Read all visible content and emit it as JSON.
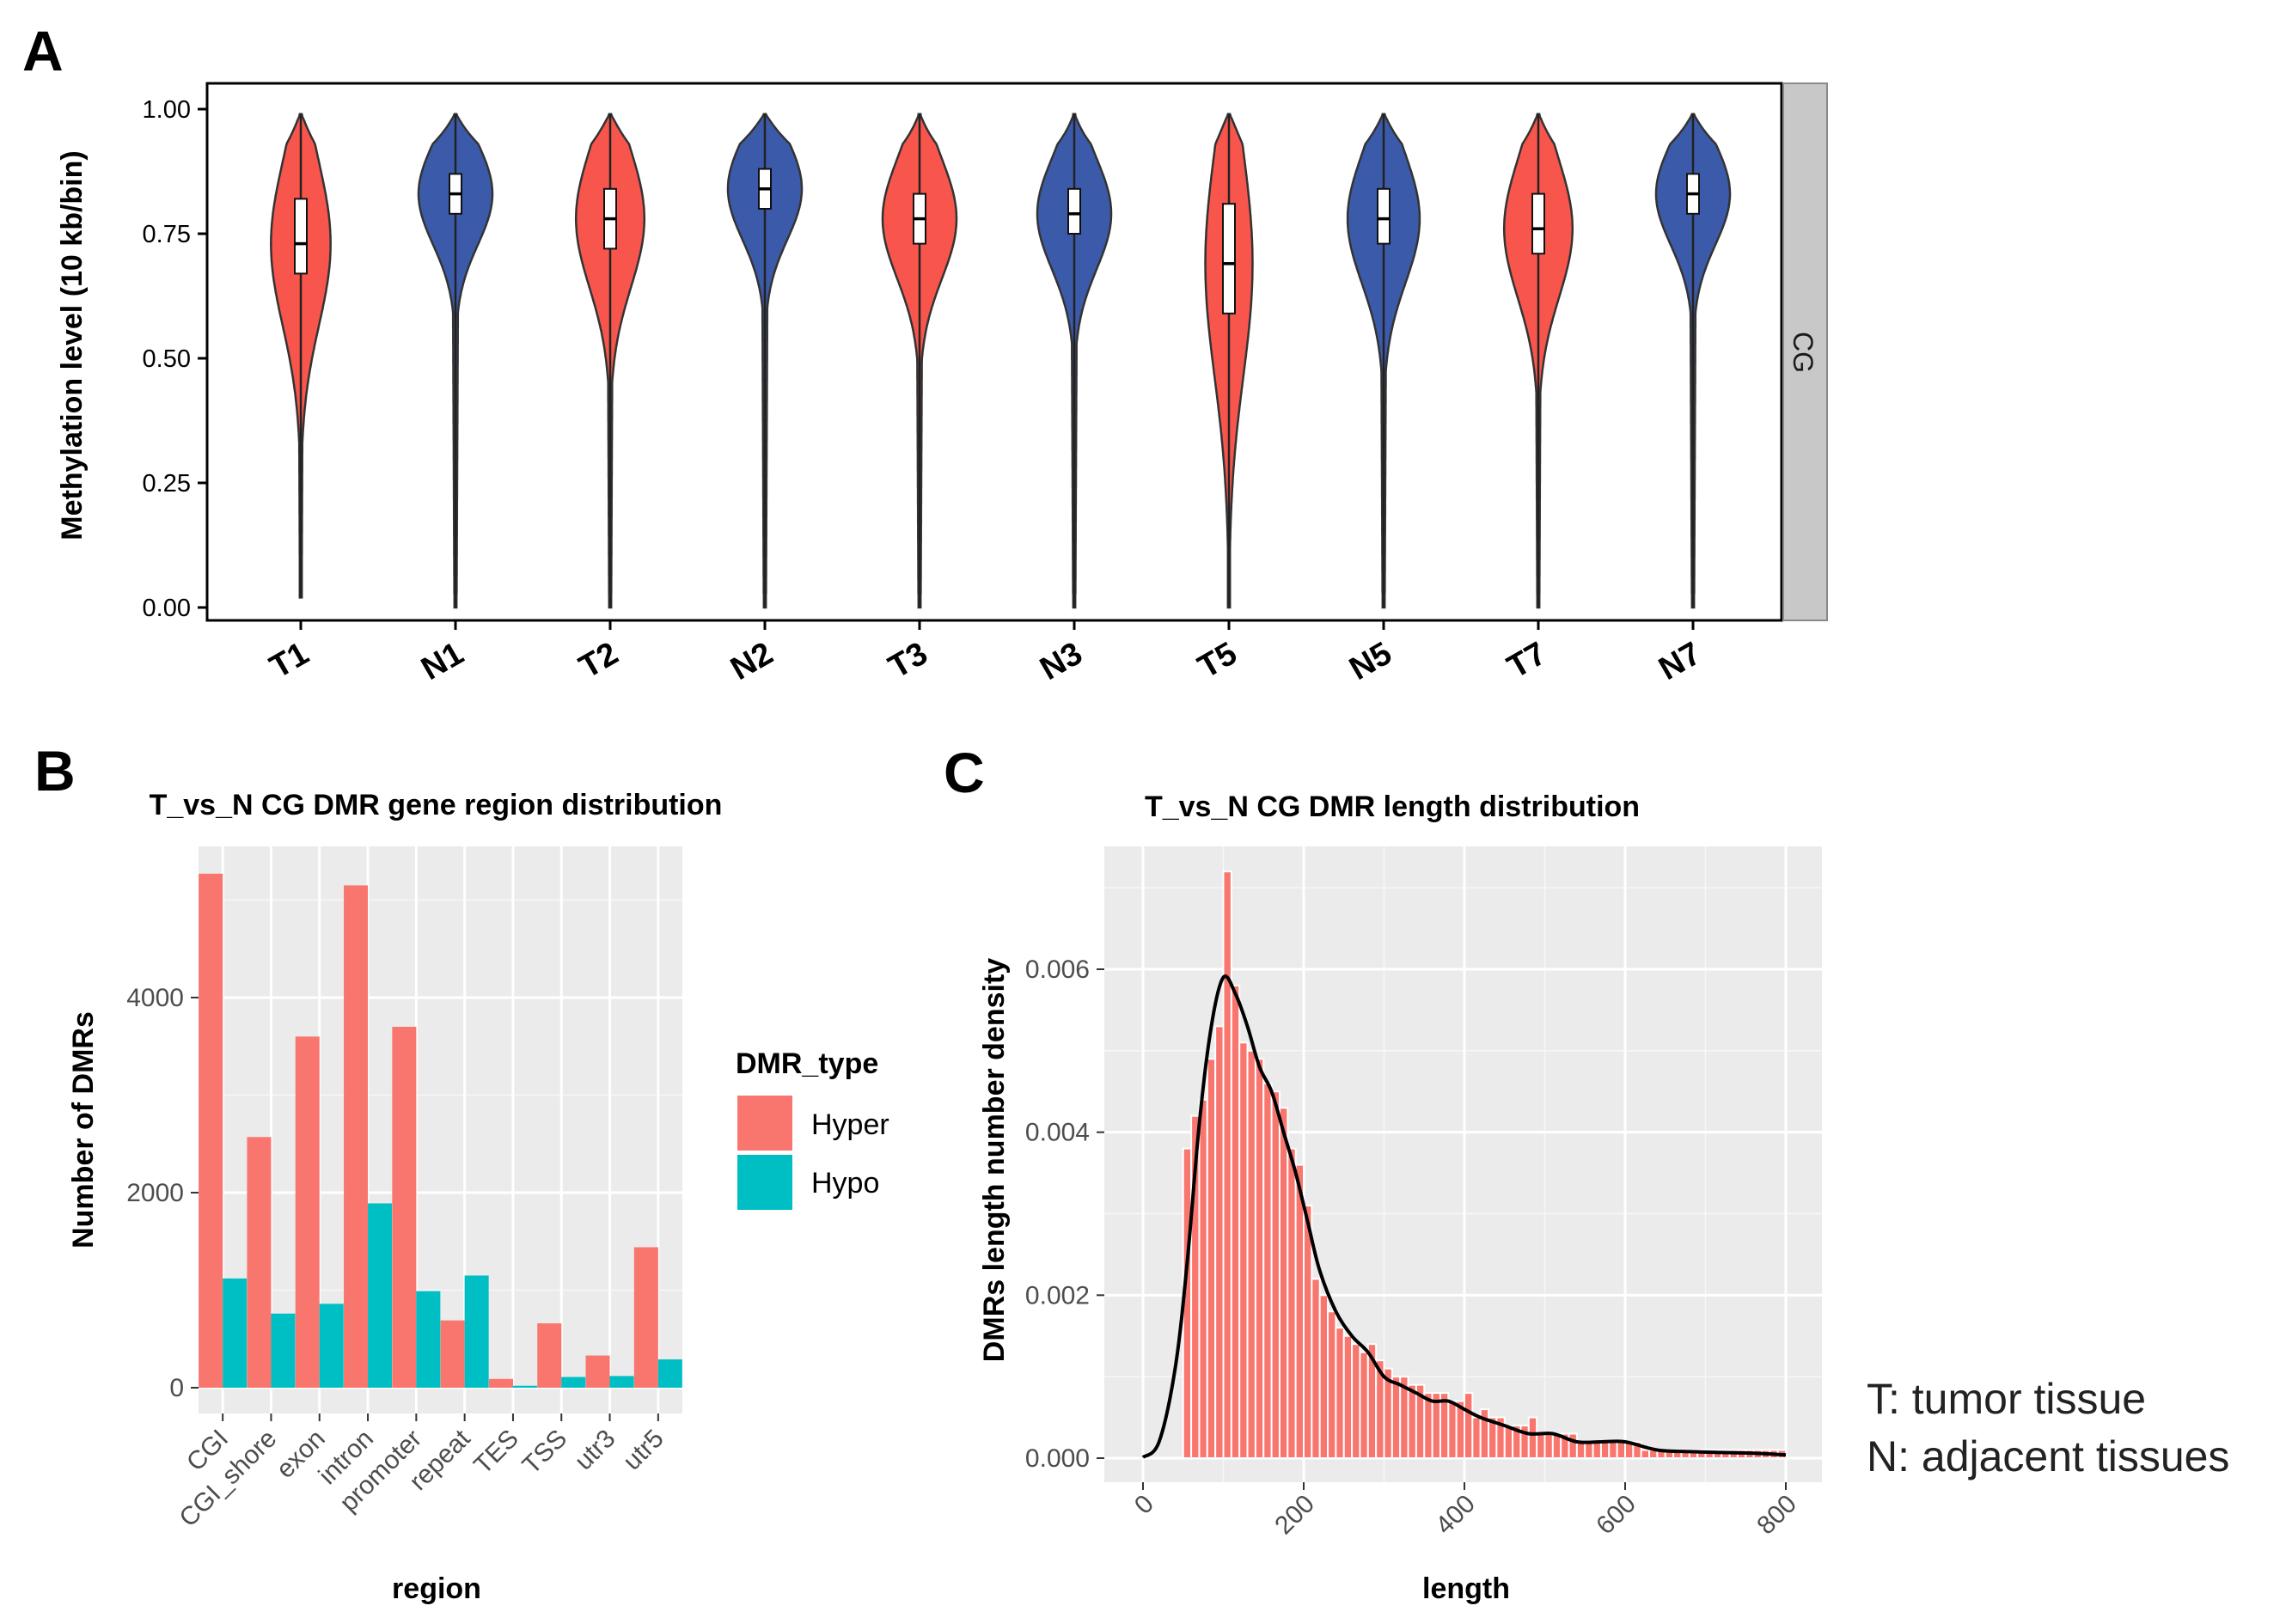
{
  "figure": {
    "panel_labels": [
      "A",
      "B",
      "C"
    ],
    "notes": [
      "T: tumor tissue",
      "N: adjacent tissues"
    ]
  },
  "chart_data": [
    {
      "type": "violin",
      "panel": "A",
      "title": "",
      "ylabel": "Methylation level (10 kb/bin)",
      "xlabel": "",
      "ylim": [
        0,
        1
      ],
      "yticks": [
        "0.00",
        "0.25",
        "0.50",
        "0.75",
        "1.00"
      ],
      "facet_label": "CG",
      "categories": [
        "T1",
        "N1",
        "T2",
        "N2",
        "T3",
        "N3",
        "T5",
        "N5",
        "T7",
        "N7"
      ],
      "groups": [
        "T",
        "N",
        "T",
        "N",
        "T",
        "N",
        "T",
        "N",
        "T",
        "N"
      ],
      "group_colors": {
        "T": "#f8564d",
        "N": "#3b5baa"
      },
      "medians": [
        0.73,
        0.83,
        0.78,
        0.84,
        0.78,
        0.79,
        0.69,
        0.78,
        0.76,
        0.83
      ],
      "q1": [
        0.67,
        0.79,
        0.72,
        0.8,
        0.73,
        0.75,
        0.59,
        0.73,
        0.71,
        0.79
      ],
      "q3": [
        0.82,
        0.87,
        0.84,
        0.88,
        0.83,
        0.84,
        0.81,
        0.84,
        0.83,
        0.87
      ],
      "min": [
        0.02,
        0.0,
        0.0,
        0.0,
        0.0,
        0.0,
        0.0,
        0.0,
        0.0,
        0.0
      ],
      "max": [
        0.99,
        0.99,
        0.99,
        0.99,
        0.99,
        0.99,
        0.99,
        0.99,
        0.99,
        0.99
      ]
    },
    {
      "type": "bar",
      "panel": "B",
      "title": "T_vs_N CG DMR gene region distribution",
      "xlabel": "region",
      "ylabel": "Number of DMRs",
      "ylim": [
        0,
        5550
      ],
      "yticks": [
        0,
        2000,
        4000
      ],
      "categories": [
        "CGI",
        "CGI_shore",
        "exon",
        "intron",
        "promoter",
        "repeat",
        "TES",
        "TSS",
        "utr3",
        "utr5"
      ],
      "legend_title": "DMR_type",
      "series": [
        {
          "name": "Hyper",
          "color": "#f8766d",
          "values": [
            5270,
            2570,
            3600,
            5150,
            3700,
            690,
            90,
            660,
            330,
            1440
          ]
        },
        {
          "name": "Hypo",
          "color": "#00bfc4",
          "values": [
            1120,
            760,
            860,
            1890,
            990,
            1150,
            20,
            110,
            120,
            290
          ]
        }
      ]
    },
    {
      "type": "histogram",
      "panel": "C",
      "title": "T_vs_N CG DMR length distribution",
      "xlabel": "length",
      "ylabel": "DMRs length number density",
      "xlim": [
        -20,
        830
      ],
      "ylim": [
        0,
        0.0074
      ],
      "xticks": [
        0,
        200,
        400,
        600,
        800
      ],
      "yticks": [
        "0.000",
        "0.002",
        "0.004",
        "0.006"
      ],
      "bin_width": 10,
      "bin_starts": [
        50,
        60,
        70,
        80,
        90,
        100,
        110,
        120,
        130,
        140,
        150,
        160,
        170,
        180,
        190,
        200,
        210,
        220,
        230,
        240,
        250,
        260,
        270,
        280,
        290,
        300,
        310,
        320,
        330,
        340,
        350,
        360,
        370,
        380,
        390,
        400,
        410,
        420,
        430,
        440,
        450,
        460,
        470,
        480,
        490,
        500,
        510,
        520,
        530,
        540,
        550,
        560,
        570,
        580,
        590,
        600,
        610,
        620,
        630,
        640,
        650,
        660,
        670,
        680,
        690,
        700,
        710,
        720,
        730,
        740,
        750,
        760,
        770,
        780,
        790
      ],
      "density": [
        0.0038,
        0.0042,
        0.0044,
        0.0049,
        0.0053,
        0.0072,
        0.0058,
        0.0051,
        0.005,
        0.0049,
        0.0046,
        0.0045,
        0.0043,
        0.0038,
        0.0036,
        0.0031,
        0.0022,
        0.002,
        0.0018,
        0.0016,
        0.0015,
        0.0014,
        0.0013,
        0.0014,
        0.0012,
        0.0011,
        0.001,
        0.001,
        0.0009,
        0.0009,
        0.0008,
        0.0008,
        0.0008,
        0.0007,
        0.0007,
        0.0008,
        0.0005,
        0.0006,
        0.0005,
        0.0005,
        0.0004,
        0.0004,
        0.0004,
        0.0005,
        0.0003,
        0.0003,
        0.0003,
        0.0003,
        0.0003,
        0.0002,
        0.0002,
        0.0002,
        0.0002,
        0.0002,
        0.0002,
        0.0002,
        0.0002,
        0.0001,
        0.0001,
        0.0001,
        0.0001,
        0.0001,
        0.0001,
        0.0001,
        0.0001,
        0.0001,
        0.0001,
        0.0001,
        0.0001,
        0.0001,
        0.0001,
        0.0001,
        0.0001,
        0.0001,
        0.0001
      ],
      "bar_color": "#f8766d",
      "density_curve": {
        "x": [
          0,
          20,
          40,
          55,
          70,
          85,
          100,
          115,
          130,
          145,
          160,
          175,
          190,
          205,
          220,
          240,
          260,
          280,
          300,
          320,
          340,
          360,
          380,
          400,
          420,
          450,
          480,
          510,
          540,
          570,
          600,
          640,
          680,
          720,
          760,
          800
        ],
        "y": [
          1e-05,
          0.0002,
          0.0011,
          0.0024,
          0.0041,
          0.0053,
          0.0059,
          0.0057,
          0.0053,
          0.0048,
          0.0045,
          0.004,
          0.0035,
          0.0029,
          0.0023,
          0.0018,
          0.0015,
          0.0013,
          0.001,
          0.0009,
          0.0008,
          0.0007,
          0.0007,
          0.0006,
          0.0005,
          0.0004,
          0.0003,
          0.0003,
          0.0002,
          0.0002,
          0.0002,
          0.0001,
          8e-05,
          7e-05,
          6e-05,
          4e-05
        ]
      }
    }
  ]
}
